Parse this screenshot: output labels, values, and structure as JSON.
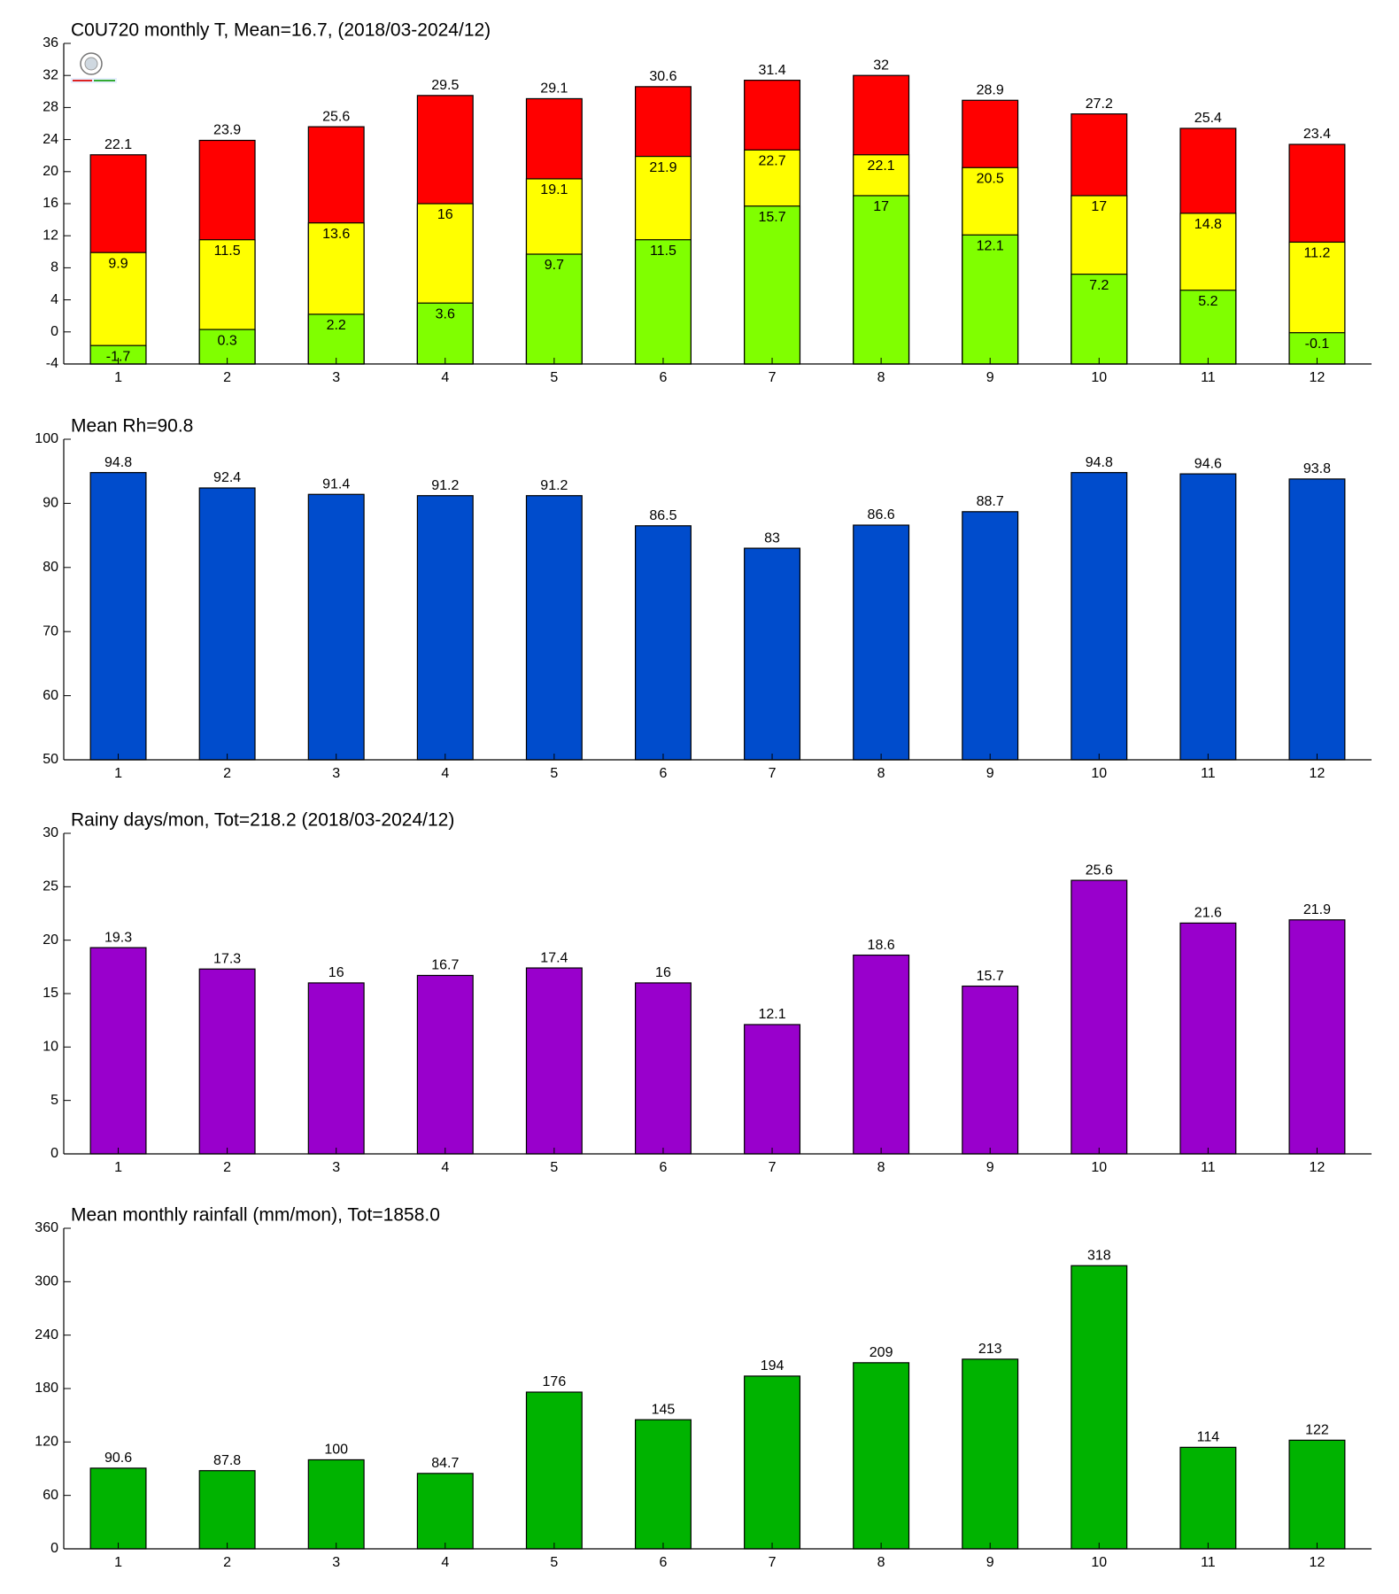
{
  "chart_data": [
    {
      "type": "bar",
      "title": "C0U720 monthly T, Mean=16.7, (2018/03-2024/12)",
      "categories": [
        "1",
        "2",
        "3",
        "4",
        "5",
        "6",
        "7",
        "8",
        "9",
        "10",
        "11",
        "12"
      ],
      "series": [
        {
          "color": "#ff0000",
          "values": [
            22.1,
            23.9,
            25.6,
            29.5,
            29.1,
            30.6,
            31.4,
            32,
            28.9,
            27.2,
            25.4,
            23.4
          ]
        },
        {
          "color": "#ffff00",
          "values": [
            9.9,
            11.5,
            13.6,
            16,
            19.1,
            21.9,
            22.7,
            22.1,
            20.5,
            17,
            14.8,
            11.2
          ]
        },
        {
          "color": "#80ff00",
          "values": [
            -1.7,
            0.3,
            2.2,
            3.6,
            9.7,
            11.5,
            15.7,
            17,
            12.1,
            7.2,
            5.2,
            -0.1
          ]
        }
      ],
      "ylim": [
        -4,
        36
      ],
      "yticks": [
        -4,
        0,
        4,
        8,
        12,
        16,
        20,
        24,
        28,
        32,
        36
      ]
    },
    {
      "type": "bar",
      "title": "Mean Rh=90.8",
      "categories": [
        "1",
        "2",
        "3",
        "4",
        "5",
        "6",
        "7",
        "8",
        "9",
        "10",
        "11",
        "12"
      ],
      "series": [
        {
          "color": "#004ccc",
          "values": [
            94.8,
            92.4,
            91.4,
            91.2,
            91.2,
            86.5,
            83,
            86.6,
            88.7,
            94.8,
            94.6,
            93.8
          ]
        }
      ],
      "ylim": [
        50,
        100
      ],
      "yticks": [
        50,
        60,
        70,
        80,
        90,
        100
      ]
    },
    {
      "type": "bar",
      "title": "Rainy days/mon, Tot=218.2 (2018/03-2024/12)",
      "categories": [
        "1",
        "2",
        "3",
        "4",
        "5",
        "6",
        "7",
        "8",
        "9",
        "10",
        "11",
        "12"
      ],
      "series": [
        {
          "color": "#9900cc",
          "values": [
            19.3,
            17.3,
            16,
            16.7,
            17.4,
            16,
            12.1,
            18.6,
            15.7,
            25.6,
            21.6,
            21.9
          ]
        }
      ],
      "ylim": [
        0,
        30
      ],
      "yticks": [
        0,
        5,
        10,
        15,
        20,
        25,
        30
      ]
    },
    {
      "type": "bar",
      "title": "Mean monthly rainfall (mm/mon), Tot=1858.0",
      "categories": [
        "1",
        "2",
        "3",
        "4",
        "5",
        "6",
        "7",
        "8",
        "9",
        "10",
        "11",
        "12"
      ],
      "series": [
        {
          "color": "#00b300",
          "values": [
            90.6,
            87.8,
            100,
            84.7,
            176,
            145,
            194,
            209,
            213,
            318,
            114,
            122
          ]
        }
      ],
      "ylim": [
        0,
        360
      ],
      "yticks": [
        0,
        60,
        120,
        180,
        240,
        300,
        360
      ]
    }
  ]
}
